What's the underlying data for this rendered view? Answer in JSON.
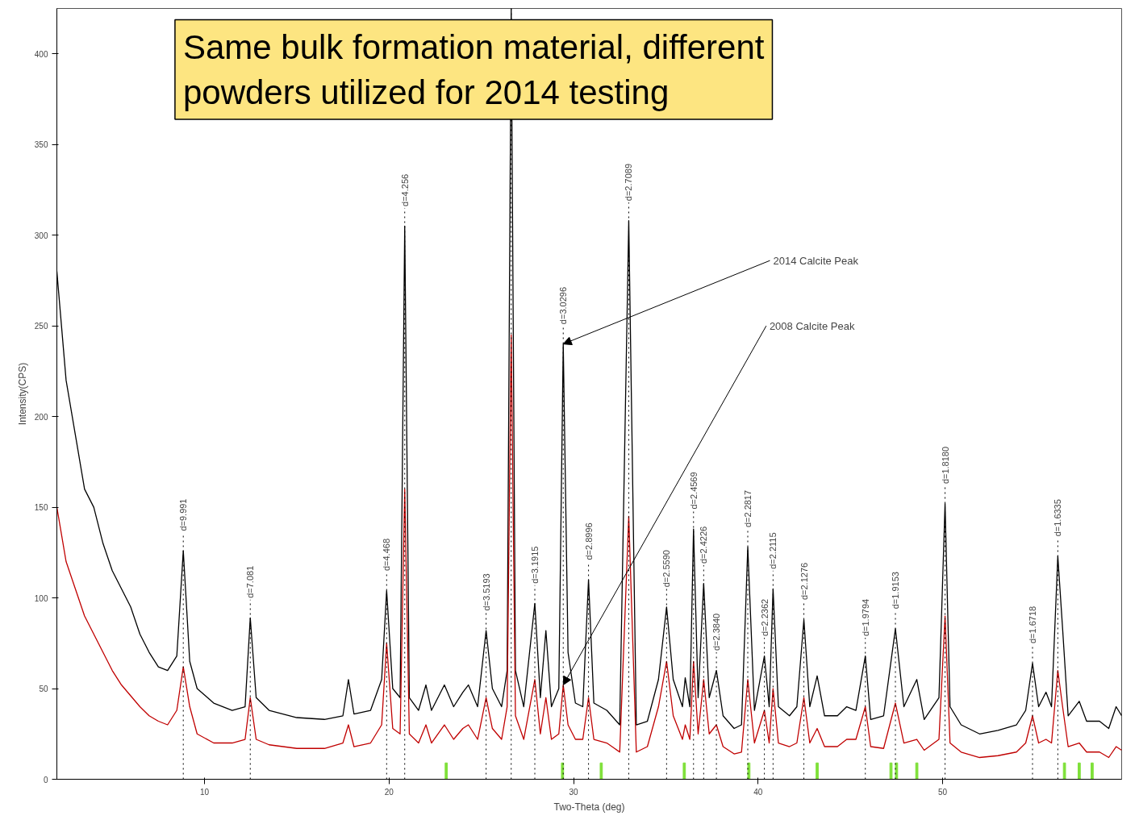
{
  "chart_data": {
    "type": "line",
    "xlabel": "Two-Theta (deg)",
    "ylabel": "Intensity(CPS)",
    "xlim": [
      2,
      59.7
    ],
    "ylim": [
      0,
      425
    ],
    "xticks": [
      10,
      20,
      30,
      40,
      50
    ],
    "yticks": [
      0,
      50,
      100,
      150,
      200,
      250,
      300,
      350,
      400
    ],
    "x": [
      2.0,
      2.5,
      3,
      3.5,
      4,
      4.5,
      5,
      5.5,
      6,
      6.5,
      7,
      7.5,
      8,
      8.5,
      8.85,
      9.2,
      9.6,
      10.5,
      11.5,
      12.2,
      12.48,
      12.8,
      13.5,
      15,
      16.5,
      17.5,
      17.8,
      18.1,
      19,
      19.6,
      19.87,
      20.2,
      20.6,
      20.85,
      21.1,
      21.6,
      22.0,
      22.3,
      23.0,
      23.5,
      24.0,
      24.3,
      24.8,
      25.26,
      25.6,
      26.1,
      26.4,
      26.62,
      26.85,
      27.3,
      27.9,
      28.2,
      28.5,
      28.8,
      29.2,
      29.44,
      29.7,
      30.1,
      30.5,
      30.81,
      31.1,
      31.8,
      32.5,
      32.99,
      33.4,
      34.0,
      34.6,
      35.04,
      35.4,
      35.9,
      36.05,
      36.3,
      36.5,
      36.75,
      37.05,
      37.35,
      37.74,
      38.1,
      38.7,
      39.1,
      39.44,
      39.8,
      40.34,
      40.6,
      40.81,
      41.1,
      41.7,
      42.1,
      42.48,
      42.8,
      43.2,
      43.6,
      44.3,
      44.8,
      45.3,
      45.81,
      46.1,
      46.8,
      47.44,
      47.9,
      48.6,
      49.0,
      49.8,
      50.13,
      50.4,
      51.0,
      52,
      53,
      54,
      54.5,
      54.87,
      55.2,
      55.6,
      55.9,
      56.24,
      56.5,
      56.8,
      57.4,
      57.8,
      58.5,
      59,
      59.4,
      59.7
    ],
    "series": [
      {
        "color": "#000000",
        "values": [
          280,
          220,
          190,
          160,
          150,
          130,
          115,
          105,
          95,
          80,
          70,
          62,
          60,
          68,
          126,
          65,
          50,
          42,
          38,
          40,
          89,
          45,
          38,
          34,
          33,
          35,
          55,
          36,
          38,
          55,
          104,
          50,
          45,
          305,
          45,
          38,
          52,
          38,
          52,
          40,
          48,
          52,
          40,
          82,
          50,
          40,
          60,
          425,
          60,
          40,
          97,
          45,
          82,
          40,
          50,
          240,
          70,
          42,
          40,
          110,
          42,
          38,
          30,
          308,
          30,
          32,
          55,
          95,
          55,
          40,
          56,
          40,
          138,
          45,
          108,
          45,
          60,
          35,
          28,
          30,
          128,
          38,
          68,
          40,
          105,
          40,
          35,
          40,
          88,
          40,
          57,
          35,
          35,
          40,
          38,
          68,
          33,
          35,
          83,
          40,
          55,
          33,
          45,
          152,
          40,
          30,
          25,
          27,
          30,
          38,
          64,
          40,
          48,
          40,
          123,
          83,
          35,
          43,
          32,
          32,
          28,
          40,
          35
        ]
      },
      {
        "color": "#c00000",
        "values": [
          150,
          120,
          105,
          90,
          80,
          70,
          60,
          52,
          46,
          40,
          35,
          32,
          30,
          38,
          62,
          40,
          25,
          20,
          20,
          22,
          45,
          22,
          19,
          17,
          17,
          20,
          30,
          18,
          20,
          30,
          75,
          28,
          25,
          160,
          25,
          20,
          30,
          20,
          30,
          22,
          28,
          30,
          22,
          45,
          28,
          22,
          40,
          245,
          35,
          22,
          55,
          25,
          45,
          22,
          25,
          52,
          30,
          22,
          22,
          45,
          22,
          20,
          15,
          145,
          15,
          18,
          40,
          65,
          35,
          22,
          30,
          22,
          65,
          25,
          55,
          25,
          30,
          18,
          14,
          15,
          55,
          20,
          38,
          20,
          50,
          20,
          18,
          20,
          45,
          20,
          28,
          18,
          18,
          22,
          22,
          40,
          18,
          17,
          42,
          20,
          22,
          16,
          22,
          90,
          20,
          15,
          12,
          13,
          15,
          20,
          35,
          20,
          22,
          20,
          60,
          40,
          18,
          20,
          15,
          15,
          12,
          18,
          16
        ]
      },
      {
        "type": "bar",
        "color": "#7fe03a",
        "x": [
          23.1,
          29.4,
          31.5,
          36.0,
          39.5,
          43.2,
          47.2,
          47.5,
          48.6,
          56.6,
          57.4,
          58.1
        ],
        "values": [
          9,
          9,
          9,
          9,
          9,
          9,
          9,
          9,
          9,
          9,
          9,
          9
        ]
      }
    ],
    "line_style": "solid",
    "grid": false,
    "ref_lines": [
      {
        "axis": "x",
        "value": 8.85,
        "line_style": "dotted",
        "color": "#000000"
      },
      {
        "axis": "x",
        "value": 12.48,
        "line_style": "dotted",
        "color": "#000000"
      },
      {
        "axis": "x",
        "value": 19.87,
        "line_style": "dotted",
        "color": "#000000"
      },
      {
        "axis": "x",
        "value": 20.85,
        "line_style": "dotted",
        "color": "#000000"
      },
      {
        "axis": "x",
        "value": 25.26,
        "line_style": "dotted",
        "color": "#000000"
      },
      {
        "axis": "x",
        "value": 26.62,
        "line_style": "dotted",
        "color": "#000000"
      },
      {
        "axis": "x",
        "value": 27.9,
        "line_style": "dotted",
        "color": "#000000"
      },
      {
        "axis": "x",
        "value": 29.44,
        "line_style": "dotted",
        "color": "#000000"
      },
      {
        "axis": "x",
        "value": 30.81,
        "line_style": "dotted",
        "color": "#000000"
      },
      {
        "axis": "x",
        "value": 32.99,
        "line_style": "dotted",
        "color": "#000000"
      },
      {
        "axis": "x",
        "value": 35.04,
        "line_style": "dotted",
        "color": "#000000"
      },
      {
        "axis": "x",
        "value": 36.5,
        "line_style": "dotted",
        "color": "#000000"
      },
      {
        "axis": "x",
        "value": 37.05,
        "line_style": "dotted",
        "color": "#000000"
      },
      {
        "axis": "x",
        "value": 37.74,
        "line_style": "dotted",
        "color": "#000000"
      },
      {
        "axis": "x",
        "value": 39.44,
        "line_style": "dotted",
        "color": "#000000"
      },
      {
        "axis": "x",
        "value": 40.34,
        "line_style": "dotted",
        "color": "#000000"
      },
      {
        "axis": "x",
        "value": 40.81,
        "line_style": "dotted",
        "color": "#000000"
      },
      {
        "axis": "x",
        "value": 42.48,
        "line_style": "dotted",
        "color": "#000000"
      },
      {
        "axis": "x",
        "value": 45.81,
        "line_style": "dotted",
        "color": "#000000"
      },
      {
        "axis": "x",
        "value": 47.44,
        "line_style": "dotted",
        "color": "#000000"
      },
      {
        "axis": "x",
        "value": 50.13,
        "line_style": "dotted",
        "color": "#000000"
      },
      {
        "axis": "x",
        "value": 54.87,
        "line_style": "dotted",
        "color": "#000000"
      },
      {
        "axis": "x",
        "value": 56.24,
        "line_style": "dotted",
        "color": "#000000"
      }
    ],
    "annotations": [
      "Same bulk formation material, different powders utilized for 2014 testing",
      {
        "text": "d=9.991",
        "x": 8.85,
        "y": 126
      },
      {
        "text": "d=7.081",
        "x": 12.48,
        "y": 89
      },
      {
        "text": "d=4.468",
        "x": 19.87,
        "y": 104
      },
      {
        "text": "d=4.256",
        "x": 20.85,
        "y": 305
      },
      {
        "text": "d=3.5193",
        "x": 25.26,
        "y": 82
      },
      {
        "text": "d=3.1915",
        "x": 27.9,
        "y": 97
      },
      {
        "text": "d=3.0296",
        "x": 29.44,
        "y": 240
      },
      {
        "text": "d=2.8996",
        "x": 30.81,
        "y": 110
      },
      {
        "text": "d=2.7089",
        "x": 32.99,
        "y": 308
      },
      {
        "text": "d=2.5590",
        "x": 35.04,
        "y": 95
      },
      {
        "text": "d=2.4569",
        "x": 36.5,
        "y": 138
      },
      {
        "text": "d=2.4226",
        "x": 37.05,
        "y": 108
      },
      {
        "text": "d=2.3840",
        "x": 37.74,
        "y": 60
      },
      {
        "text": "d=2.2817",
        "x": 39.44,
        "y": 128
      },
      {
        "text": "d=2.2362",
        "x": 40.34,
        "y": 68
      },
      {
        "text": "d=2.2115",
        "x": 40.81,
        "y": 105
      },
      {
        "text": "d=2.1276",
        "x": 42.48,
        "y": 88
      },
      {
        "text": "d=1.9794",
        "x": 45.81,
        "y": 68
      },
      {
        "text": "d=1.9153",
        "x": 47.44,
        "y": 83
      },
      {
        "text": "d=1.8180",
        "x": 50.13,
        "y": 152
      },
      {
        "text": "d=1.6718",
        "x": 54.87,
        "y": 64
      },
      {
        "text": "d=1.6335",
        "x": 56.24,
        "y": 123
      },
      {
        "text": "2014 Calcite Peak",
        "x": 29.44,
        "y": 240
      },
      {
        "text": "2008 Calcite Peak",
        "x": 29.44,
        "y": 52
      }
    ]
  }
}
